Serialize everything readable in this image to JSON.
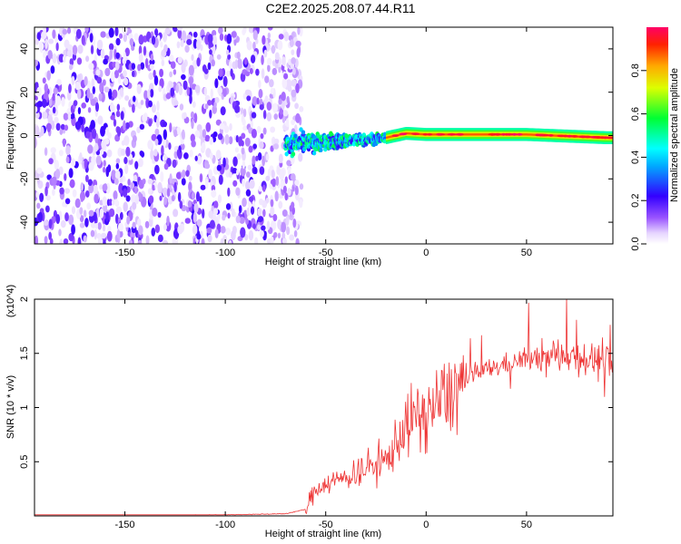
{
  "title": "C2E2.2025.208.07.44.R11",
  "chart_data": [
    {
      "type": "heatmap",
      "xlabel": "Height of straight line (km)",
      "ylabel": "Frequency (Hz)",
      "xlim": [
        -195,
        93
      ],
      "ylim": [
        -50,
        50
      ],
      "xticks": [
        -150,
        -100,
        -50,
        0,
        50
      ],
      "yticks": [
        -40,
        -20,
        0,
        20,
        40
      ],
      "colorbar": {
        "label": "Normalized spectral amplitude",
        "range": [
          0,
          1
        ],
        "ticks": [
          0.0,
          0.2,
          0.4,
          0.6,
          0.8
        ],
        "tick_labels": [
          "0.0",
          "0.2",
          "0.4",
          "0.6",
          "0.8"
        ],
        "colormap": "rainbow (white-violet-blue-cyan-green-yellow-red)"
      },
      "regions": [
        {
          "x_range": [
            -195,
            -70
          ],
          "freq_range": [
            -50,
            50
          ],
          "amplitude_range": [
            0.0,
            0.2
          ],
          "pattern": "broadband noise"
        },
        {
          "x_range": [
            -70,
            -20
          ],
          "freq_range": [
            -10,
            6
          ],
          "amplitude_range": [
            0.2,
            0.6
          ],
          "pattern": "narrowing band around 0 Hz"
        },
        {
          "x_range": [
            -20,
            93
          ],
          "freq_range": [
            -3,
            3
          ],
          "amplitude_range": [
            0.6,
            1.0
          ],
          "pattern": "narrow band at 0 Hz"
        }
      ],
      "ridge": {
        "x": [
          -70,
          -50,
          -30,
          -20,
          -10,
          0,
          20,
          50,
          90
        ],
        "y": [
          -4,
          -3,
          -2,
          -1,
          1,
          0.5,
          0.5,
          0.5,
          -1
        ]
      }
    },
    {
      "type": "line",
      "xlabel": "Height of straight line (km)",
      "ylabel": "SNR (10 * v/v)",
      "y_multiplier": "(x10^4)",
      "xlim": [
        -195,
        93
      ],
      "ylim": [
        0,
        2.0
      ],
      "xticks": [
        -150,
        -100,
        -50,
        0,
        50
      ],
      "yticks": [
        0.5,
        1.0,
        1.5,
        2.0
      ],
      "series": [
        {
          "color": "#ee3333",
          "x": [
            -195,
            -150,
            -100,
            -70,
            -60,
            -55,
            -50,
            -40,
            -30,
            -20,
            -10,
            0,
            10,
            20,
            30,
            40,
            50,
            60,
            70,
            80,
            93
          ],
          "values": [
            0.0,
            0.0,
            0.01,
            0.02,
            0.06,
            0.25,
            0.3,
            0.35,
            0.45,
            0.5,
            0.85,
            0.95,
            1.1,
            1.25,
            1.35,
            1.4,
            1.45,
            1.45,
            1.5,
            1.45,
            1.4
          ]
        }
      ]
    }
  ]
}
